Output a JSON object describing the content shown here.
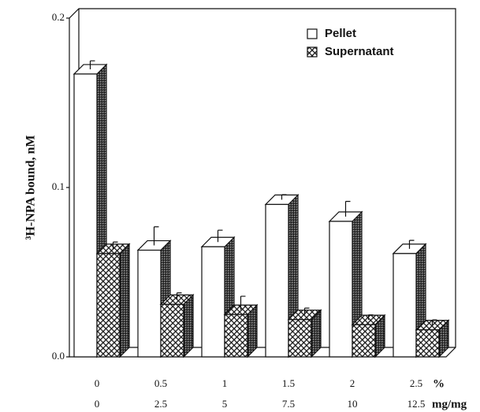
{
  "chart_data": {
    "type": "bar3d",
    "ylabel": "³H-NPA bound, nM",
    "categories": [
      "0",
      "0.5",
      "1",
      "1.5",
      "2",
      "2.5"
    ],
    "categories2": [
      "0",
      "2.5",
      "5",
      "7.5",
      "10",
      "12.5"
    ],
    "x_units": [
      "%",
      "mg/mg"
    ],
    "series": [
      {
        "name": "Pellet",
        "color": "#ffffff",
        "values": [
          0.167,
          0.063,
          0.065,
          0.09,
          0.08,
          0.061
        ],
        "errors": [
          0.005,
          0.011,
          0.007,
          0.003,
          0.009,
          0.005
        ]
      },
      {
        "name": "Supernatant",
        "color": "hatch",
        "values": [
          0.061,
          0.031,
          0.025,
          0.022,
          0.019,
          0.016
        ],
        "errors": [
          0.004,
          0.004,
          0.008,
          0.004,
          0.003,
          0.003
        ]
      }
    ],
    "ylim": [
      0,
      0.2
    ],
    "yticks": [
      {
        "value": 0,
        "label": "0.0"
      },
      0.1,
      0.2
    ],
    "legend": "upper right"
  }
}
